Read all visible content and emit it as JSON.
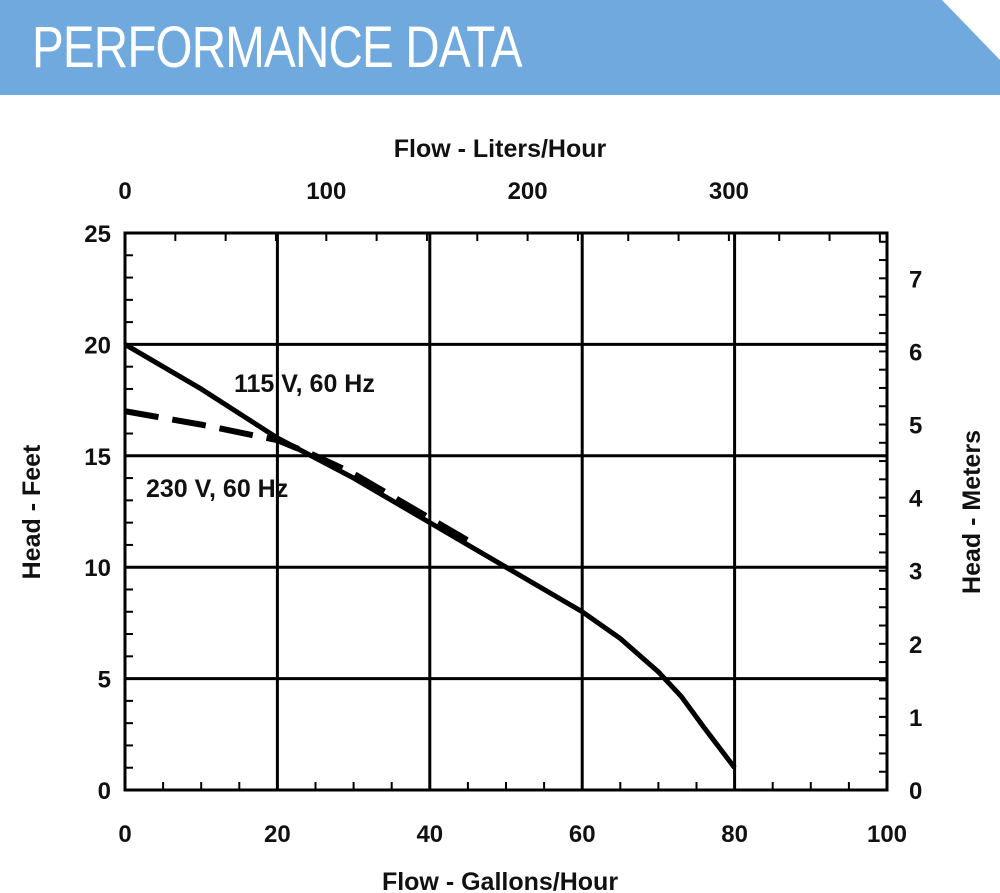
{
  "header": {
    "title": "PERFORMANCE DATA",
    "banner_color": "#6fa9dd"
  },
  "chart_data": {
    "type": "line",
    "x_bottom": {
      "label": "Flow - Gallons/Hour",
      "range": [
        0,
        100
      ],
      "ticks": [
        0,
        20,
        40,
        60,
        80,
        100
      ]
    },
    "x_top": {
      "label": "Flow - Liters/Hour",
      "ticks": [
        0,
        100,
        200,
        300
      ]
    },
    "y_left": {
      "label": "Head - Feet",
      "range": [
        0,
        25
      ],
      "ticks": [
        0,
        5,
        10,
        15,
        20,
        25
      ]
    },
    "y_right": {
      "label": "Head - Meters",
      "ticks": [
        0,
        1,
        2,
        3,
        4,
        5,
        6,
        7
      ]
    },
    "grid": true,
    "series": [
      {
        "name": "115 V, 60 Hz",
        "style": "solid",
        "x": [
          0,
          10,
          20,
          30,
          40,
          50,
          60,
          65,
          70,
          73,
          76,
          80
        ],
        "y": [
          20,
          18,
          15.8,
          14.0,
          12.0,
          10.0,
          8.0,
          6.8,
          5.3,
          4.2,
          2.8,
          1.0
        ]
      },
      {
        "name": "230 V, 60 Hz",
        "style": "dashed",
        "x": [
          0,
          10,
          20,
          25,
          30,
          40,
          46
        ],
        "y": [
          17.0,
          16.4,
          15.7,
          15.0,
          14.2,
          12.2,
          11.0
        ]
      }
    ]
  }
}
